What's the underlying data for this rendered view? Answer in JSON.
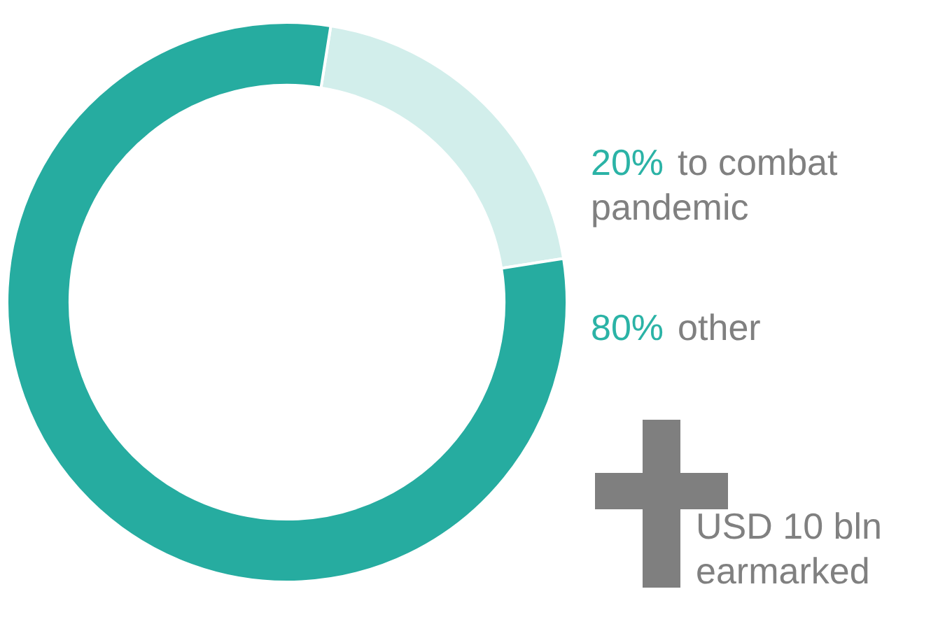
{
  "chart_data": {
    "type": "donut",
    "categories": [
      "to combat pandemic",
      "other"
    ],
    "values": [
      20,
      80
    ],
    "value_labels": [
      "20%",
      "80%"
    ],
    "colors": [
      "#d2eeeb",
      "#26aca0"
    ],
    "annotations": [
      "USD 10 bln earmarked"
    ]
  }
}
